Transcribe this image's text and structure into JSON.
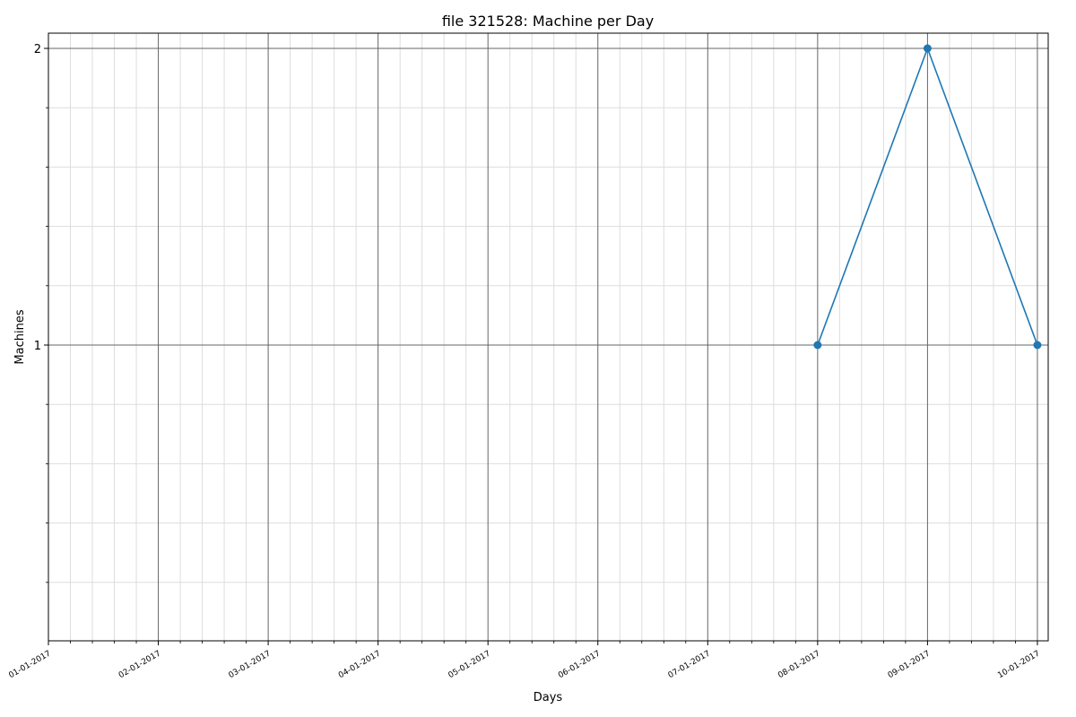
{
  "chart_data": {
    "type": "line",
    "title": "file 321528: Machine per Day",
    "xlabel": "Days",
    "ylabel": "Machines",
    "x_tick_labels": [
      "01-01-2017",
      "02-01-2017",
      "03-01-2017",
      "04-01-2017",
      "05-01-2017",
      "06-01-2017",
      "07-01-2017",
      "08-01-2017",
      "09-01-2017",
      "10-01-2017"
    ],
    "y_tick_labels": [
      "1",
      "2"
    ],
    "y_ticks": [
      1,
      2
    ],
    "ylim": [
      0,
      2.05
    ],
    "xlim": [
      "01-01-2017",
      "10-01-2017"
    ],
    "x_minor_per_major": 5,
    "y_minor_step": 0.2,
    "grid": true,
    "series": [
      {
        "x": [
          "08-01-2017",
          "09-01-2017",
          "10-01-2017"
        ],
        "values": [
          1,
          2,
          1
        ],
        "color": "#1f77b4",
        "marker": "circle"
      }
    ],
    "colors": {
      "major_grid": "#666666",
      "minor_grid": "#dddddd",
      "line": "#1f77b4"
    }
  }
}
